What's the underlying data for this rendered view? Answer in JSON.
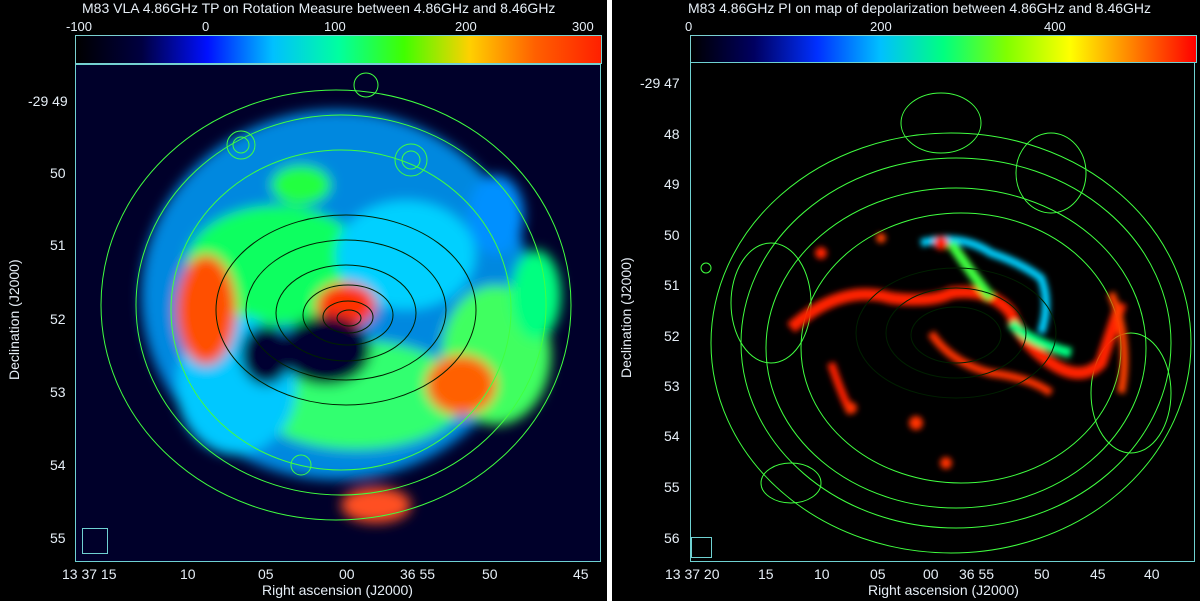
{
  "left_panel": {
    "title": "M83 VLA 4.86GHz TP on Rotation Measure between 4.86GHz and 8.46GHz",
    "colorbar_labels": [
      "-100",
      "0",
      "100",
      "200",
      "300"
    ],
    "colorbar_colors": [
      "#000000",
      "#000040",
      "#0010ff",
      "#00c0ff",
      "#00ffa0",
      "#40ff00",
      "#ffd000",
      "#ff6000",
      "#ff2000"
    ],
    "y_tick_labels": [
      "-29 49",
      "50",
      "51",
      "52",
      "53",
      "54",
      "55"
    ],
    "x_tick_labels": [
      "13 37 15",
      "10",
      "05",
      "00",
      "36 55",
      "50",
      "45"
    ],
    "xlabel": "Right ascension (J2000)",
    "ylabel": "Declination (J2000)"
  },
  "right_panel": {
    "title": "M83 4.86GHz PI on map of depolarization between 4.86GHz and 8.46GHz",
    "colorbar_labels": [
      "0",
      "200",
      "400"
    ],
    "colorbar_colors": [
      "#000000",
      "#000060",
      "#0030ff",
      "#00c0ff",
      "#00ff80",
      "#80ff00",
      "#ffff00",
      "#ff8000",
      "#ff0000"
    ],
    "y_tick_labels": [
      "-29 47",
      "48",
      "49",
      "50",
      "51",
      "52",
      "53",
      "54",
      "55",
      "56"
    ],
    "x_tick_labels": [
      "13 37 20",
      "15",
      "10",
      "05",
      "00",
      "36 55",
      "50",
      "45",
      "40"
    ],
    "xlabel": "Right ascension (J2000)",
    "ylabel": "Declination (J2000)"
  },
  "contour_color": "#40ff40"
}
